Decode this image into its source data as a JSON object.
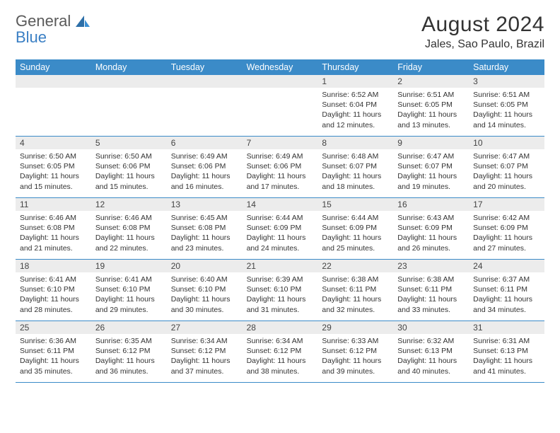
{
  "logo": {
    "line1": "General",
    "line2": "Blue"
  },
  "title": "August 2024",
  "location": "Jales, Sao Paulo, Brazil",
  "colors": {
    "header_bar": "#3b8bc8",
    "daynum_bg": "#ececec",
    "text": "#333333",
    "logo_gray": "#5a5a5a",
    "logo_blue": "#3a7fc4",
    "border": "#3b8bc8"
  },
  "weekdays": [
    "Sunday",
    "Monday",
    "Tuesday",
    "Wednesday",
    "Thursday",
    "Friday",
    "Saturday"
  ],
  "weeks": [
    [
      {
        "n": "",
        "sr": "",
        "ss": "",
        "dl": ""
      },
      {
        "n": "",
        "sr": "",
        "ss": "",
        "dl": ""
      },
      {
        "n": "",
        "sr": "",
        "ss": "",
        "dl": ""
      },
      {
        "n": "",
        "sr": "",
        "ss": "",
        "dl": ""
      },
      {
        "n": "1",
        "sr": "Sunrise: 6:52 AM",
        "ss": "Sunset: 6:04 PM",
        "dl": "Daylight: 11 hours and 12 minutes."
      },
      {
        "n": "2",
        "sr": "Sunrise: 6:51 AM",
        "ss": "Sunset: 6:05 PM",
        "dl": "Daylight: 11 hours and 13 minutes."
      },
      {
        "n": "3",
        "sr": "Sunrise: 6:51 AM",
        "ss": "Sunset: 6:05 PM",
        "dl": "Daylight: 11 hours and 14 minutes."
      }
    ],
    [
      {
        "n": "4",
        "sr": "Sunrise: 6:50 AM",
        "ss": "Sunset: 6:05 PM",
        "dl": "Daylight: 11 hours and 15 minutes."
      },
      {
        "n": "5",
        "sr": "Sunrise: 6:50 AM",
        "ss": "Sunset: 6:06 PM",
        "dl": "Daylight: 11 hours and 15 minutes."
      },
      {
        "n": "6",
        "sr": "Sunrise: 6:49 AM",
        "ss": "Sunset: 6:06 PM",
        "dl": "Daylight: 11 hours and 16 minutes."
      },
      {
        "n": "7",
        "sr": "Sunrise: 6:49 AM",
        "ss": "Sunset: 6:06 PM",
        "dl": "Daylight: 11 hours and 17 minutes."
      },
      {
        "n": "8",
        "sr": "Sunrise: 6:48 AM",
        "ss": "Sunset: 6:07 PM",
        "dl": "Daylight: 11 hours and 18 minutes."
      },
      {
        "n": "9",
        "sr": "Sunrise: 6:47 AM",
        "ss": "Sunset: 6:07 PM",
        "dl": "Daylight: 11 hours and 19 minutes."
      },
      {
        "n": "10",
        "sr": "Sunrise: 6:47 AM",
        "ss": "Sunset: 6:07 PM",
        "dl": "Daylight: 11 hours and 20 minutes."
      }
    ],
    [
      {
        "n": "11",
        "sr": "Sunrise: 6:46 AM",
        "ss": "Sunset: 6:08 PM",
        "dl": "Daylight: 11 hours and 21 minutes."
      },
      {
        "n": "12",
        "sr": "Sunrise: 6:46 AM",
        "ss": "Sunset: 6:08 PM",
        "dl": "Daylight: 11 hours and 22 minutes."
      },
      {
        "n": "13",
        "sr": "Sunrise: 6:45 AM",
        "ss": "Sunset: 6:08 PM",
        "dl": "Daylight: 11 hours and 23 minutes."
      },
      {
        "n": "14",
        "sr": "Sunrise: 6:44 AM",
        "ss": "Sunset: 6:09 PM",
        "dl": "Daylight: 11 hours and 24 minutes."
      },
      {
        "n": "15",
        "sr": "Sunrise: 6:44 AM",
        "ss": "Sunset: 6:09 PM",
        "dl": "Daylight: 11 hours and 25 minutes."
      },
      {
        "n": "16",
        "sr": "Sunrise: 6:43 AM",
        "ss": "Sunset: 6:09 PM",
        "dl": "Daylight: 11 hours and 26 minutes."
      },
      {
        "n": "17",
        "sr": "Sunrise: 6:42 AM",
        "ss": "Sunset: 6:09 PM",
        "dl": "Daylight: 11 hours and 27 minutes."
      }
    ],
    [
      {
        "n": "18",
        "sr": "Sunrise: 6:41 AM",
        "ss": "Sunset: 6:10 PM",
        "dl": "Daylight: 11 hours and 28 minutes."
      },
      {
        "n": "19",
        "sr": "Sunrise: 6:41 AM",
        "ss": "Sunset: 6:10 PM",
        "dl": "Daylight: 11 hours and 29 minutes."
      },
      {
        "n": "20",
        "sr": "Sunrise: 6:40 AM",
        "ss": "Sunset: 6:10 PM",
        "dl": "Daylight: 11 hours and 30 minutes."
      },
      {
        "n": "21",
        "sr": "Sunrise: 6:39 AM",
        "ss": "Sunset: 6:10 PM",
        "dl": "Daylight: 11 hours and 31 minutes."
      },
      {
        "n": "22",
        "sr": "Sunrise: 6:38 AM",
        "ss": "Sunset: 6:11 PM",
        "dl": "Daylight: 11 hours and 32 minutes."
      },
      {
        "n": "23",
        "sr": "Sunrise: 6:38 AM",
        "ss": "Sunset: 6:11 PM",
        "dl": "Daylight: 11 hours and 33 minutes."
      },
      {
        "n": "24",
        "sr": "Sunrise: 6:37 AM",
        "ss": "Sunset: 6:11 PM",
        "dl": "Daylight: 11 hours and 34 minutes."
      }
    ],
    [
      {
        "n": "25",
        "sr": "Sunrise: 6:36 AM",
        "ss": "Sunset: 6:11 PM",
        "dl": "Daylight: 11 hours and 35 minutes."
      },
      {
        "n": "26",
        "sr": "Sunrise: 6:35 AM",
        "ss": "Sunset: 6:12 PM",
        "dl": "Daylight: 11 hours and 36 minutes."
      },
      {
        "n": "27",
        "sr": "Sunrise: 6:34 AM",
        "ss": "Sunset: 6:12 PM",
        "dl": "Daylight: 11 hours and 37 minutes."
      },
      {
        "n": "28",
        "sr": "Sunrise: 6:34 AM",
        "ss": "Sunset: 6:12 PM",
        "dl": "Daylight: 11 hours and 38 minutes."
      },
      {
        "n": "29",
        "sr": "Sunrise: 6:33 AM",
        "ss": "Sunset: 6:12 PM",
        "dl": "Daylight: 11 hours and 39 minutes."
      },
      {
        "n": "30",
        "sr": "Sunrise: 6:32 AM",
        "ss": "Sunset: 6:13 PM",
        "dl": "Daylight: 11 hours and 40 minutes."
      },
      {
        "n": "31",
        "sr": "Sunrise: 6:31 AM",
        "ss": "Sunset: 6:13 PM",
        "dl": "Daylight: 11 hours and 41 minutes."
      }
    ]
  ]
}
